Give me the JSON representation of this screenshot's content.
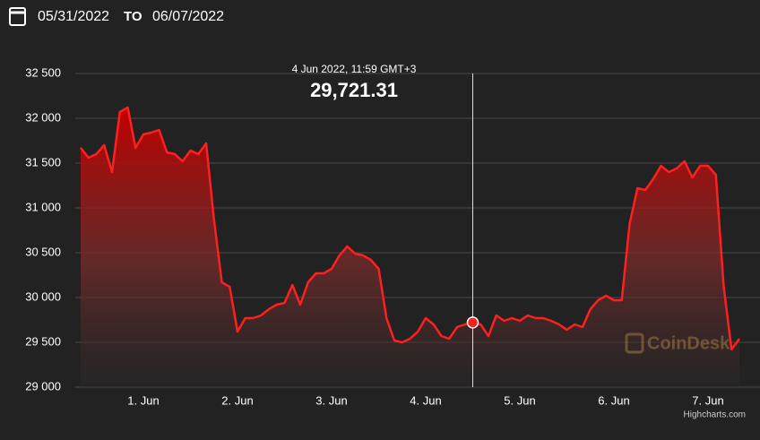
{
  "header": {
    "from": "05/31/2022",
    "separator": "TO",
    "to": "06/07/2022"
  },
  "chart_data": {
    "type": "area",
    "color": "#ff1f1f",
    "categories": [
      "",
      "",
      "",
      "",
      "",
      "",
      "",
      "",
      "1. Jun",
      "",
      "",
      "",
      "",
      "",
      "",
      "",
      "",
      "",
      "",
      "",
      "2. Jun",
      "",
      "",
      "",
      "",
      "",
      "",
      "",
      "",
      "",
      "",
      "",
      "3. Jun",
      "",
      "",
      "",
      "",
      "",
      "",
      "",
      "",
      "",
      "",
      "",
      "4. Jun",
      "",
      "",
      "",
      "",
      "",
      "",
      "",
      "",
      "",
      "",
      "",
      "5. Jun",
      "",
      "",
      "",
      "",
      "",
      "",
      "",
      "",
      "",
      "",
      "",
      "6. Jun",
      "",
      "",
      "",
      "",
      "",
      "",
      "",
      "",
      "",
      "",
      "",
      "7. Jun",
      "",
      "",
      "",
      ""
    ],
    "values": [
      31670,
      31560,
      31600,
      31700,
      31400,
      32070,
      32120,
      31670,
      31820,
      31840,
      31870,
      31620,
      31600,
      31520,
      31640,
      31600,
      31720,
      30870,
      30170,
      30120,
      29620,
      29770,
      29770,
      29800,
      29870,
      29920,
      29940,
      30140,
      29920,
      30170,
      30270,
      30270,
      30320,
      30470,
      30570,
      30490,
      30470,
      30420,
      30320,
      29770,
      29520,
      29500,
      29540,
      29620,
      29770,
      29700,
      29570,
      29540,
      29670,
      29700,
      29721.31,
      29700,
      29570,
      29800,
      29740,
      29770,
      29740,
      29800,
      29770,
      29770,
      29740,
      29700,
      29640,
      29700,
      29670,
      29870,
      29970,
      30020,
      29970,
      29970,
      30820,
      31220,
      31200,
      31320,
      31470,
      31400,
      31440,
      31520,
      31340,
      31470,
      31470,
      31370,
      30120,
      29420,
      29540
    ],
    "value_labels": [
      null,
      null,
      null,
      null,
      null,
      null,
      null,
      null,
      null,
      null,
      null,
      null,
      null,
      null,
      null,
      null,
      null,
      null,
      null,
      null,
      null,
      null,
      null,
      null,
      null,
      null,
      null,
      null,
      null,
      null,
      null,
      null,
      null,
      null,
      null,
      null,
      null,
      null,
      null,
      null,
      null,
      null,
      null,
      null,
      null,
      null,
      null,
      null,
      null,
      null,
      "29,721.31",
      null,
      null,
      null,
      null,
      null,
      null,
      null,
      null,
      null,
      null,
      null,
      null,
      null,
      null,
      null,
      null,
      null,
      null,
      null,
      null,
      null,
      null,
      null,
      null,
      null,
      null,
      null,
      null,
      null,
      null,
      null,
      null,
      null,
      null
    ],
    "tooltip_title": "4 Jun 2022, 11:59 GMT+3",
    "ylim": [
      29000,
      32500
    ],
    "yticks": [
      {
        "value": 29000,
        "label": "29 000"
      },
      {
        "value": 29500,
        "label": "29 500"
      },
      {
        "value": 30000,
        "label": "30 000"
      },
      {
        "value": 30500,
        "label": "30 500"
      },
      {
        "value": 31000,
        "label": "31 000"
      },
      {
        "value": 31500,
        "label": "31 500"
      },
      {
        "value": 32000,
        "label": "32 000"
      },
      {
        "value": 32500,
        "label": "32 500"
      }
    ],
    "grid": true,
    "watermark": "CoinDesk",
    "credits": "Highcharts.com"
  }
}
